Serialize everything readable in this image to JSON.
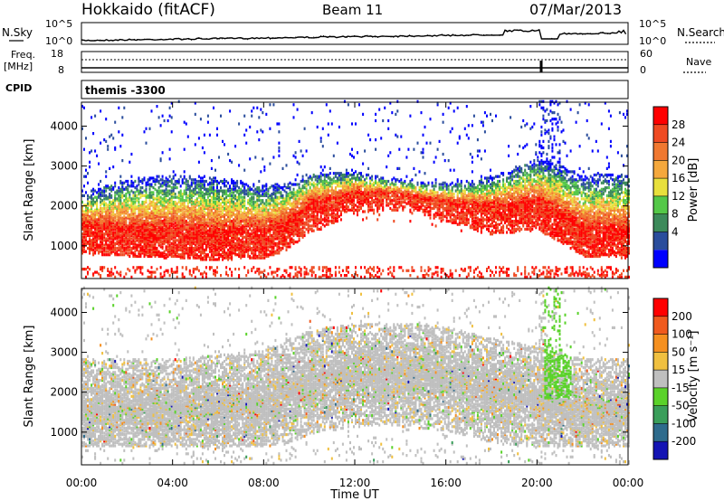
{
  "header": {
    "station": "Hokkaido (fitACF)",
    "beam": "Beam 11",
    "date": "07/Mar/2013"
  },
  "noise_panel": {
    "left_label": "N.Sky",
    "right_label": "N.Search",
    "left_ticks": [
      "10^5",
      "10^0"
    ],
    "right_ticks": [
      "10^5",
      "10^0"
    ]
  },
  "freq_panel": {
    "left_label_1": "Freq.",
    "left_label_2": "[MHz]",
    "left_ticks": [
      "18",
      "8"
    ],
    "right_label": "Nave",
    "right_ticks": [
      "60",
      "0"
    ]
  },
  "cpid_panel": {
    "label": "CPID",
    "mode": "themis -3300"
  },
  "power_panel": {
    "ylabel": "Slant Range [km]",
    "yticks": [
      "4000",
      "3000",
      "2000",
      "1000"
    ],
    "colorbar_label": "Power [dB]",
    "colorbar_ticks": [
      "28",
      "24",
      "20",
      "16",
      "12",
      "8",
      "4"
    ],
    "colors": [
      "#0000ff",
      "#2a4d9c",
      "#3c8a5a",
      "#54c848",
      "#e8e03c",
      "#f5a83c",
      "#f07830",
      "#ef4a22",
      "#ff0000"
    ]
  },
  "velocity_panel": {
    "ylabel": "Slant Range [km]",
    "yticks": [
      "4000",
      "3000",
      "2000",
      "1000"
    ],
    "colorbar_label": "Velocity [m s⁻¹]",
    "colorbar_ticks": [
      "200",
      "100",
      "50",
      "15",
      "-15",
      "-50",
      "-100",
      "-200"
    ],
    "colors": [
      "#1414b4",
      "#2e6b8c",
      "#3a9e5a",
      "#5ad22a",
      "#bfbfbf",
      "#f0c040",
      "#f59020",
      "#f05a1e",
      "#ff0000"
    ]
  },
  "xaxis": {
    "label": "Time UT",
    "ticks": [
      "00:00",
      "04:00",
      "08:00",
      "12:00",
      "16:00",
      "20:00",
      "00:00"
    ]
  },
  "chart_data": {
    "type": "heatmap",
    "title": "Hokkaido (fitACF)",
    "subtitle": "Beam 11",
    "xlabel": "Time UT",
    "ylabel": "Slant Range [km]",
    "xlim": [
      0,
      24
    ],
    "ylim": [
      180,
      4600
    ],
    "grid": false,
    "power_band_center_km": [
      [
        0,
        1200
      ],
      [
        2,
        1150
      ],
      [
        4,
        1100
      ],
      [
        6,
        1050
      ],
      [
        8,
        1100
      ],
      [
        9,
        1300
      ],
      [
        10,
        1750
      ],
      [
        12,
        2050
      ],
      [
        14,
        2000
      ],
      [
        16,
        1800
      ],
      [
        18,
        1700
      ],
      [
        20,
        1800
      ],
      [
        21,
        1500
      ],
      [
        22,
        1150
      ],
      [
        24,
        1100
      ]
    ],
    "velocity_band_center_km": [
      [
        0,
        1500
      ],
      [
        4,
        1500
      ],
      [
        8,
        1700
      ],
      [
        10,
        2200
      ],
      [
        12,
        2400
      ],
      [
        14,
        2400
      ],
      [
        16,
        2300
      ],
      [
        18,
        2000
      ],
      [
        20,
        1800
      ],
      [
        22,
        1500
      ],
      [
        24,
        1500
      ]
    ]
  }
}
